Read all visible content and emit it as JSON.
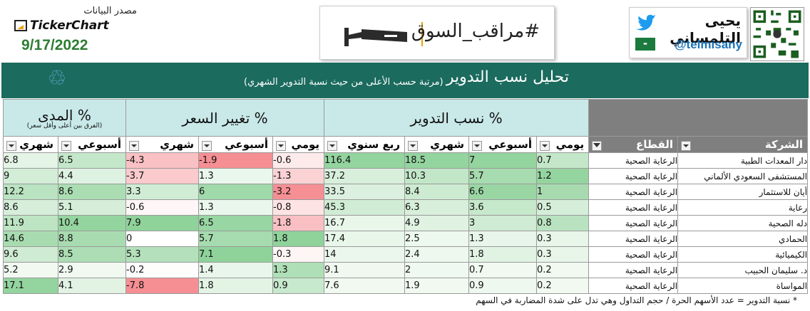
{
  "header": {
    "source_label": "مصدر البيانات",
    "source_name": "TickerChart",
    "date": "9/17/2022",
    "banner_tag": "#مراقب_السوق",
    "profile_name": "يحيى التلمساني",
    "profile_handle": "@telmisany"
  },
  "title": {
    "main": "تحليل نسب التدوير",
    "sub": "(مرتبة حسب الأعلى من حيث نسبة التدوير الشهري)"
  },
  "groups": {
    "range": {
      "title": "المدى %",
      "sub": "(الفرق بين أعلى وأقل سعر)"
    },
    "price": {
      "title": "تغيير السعر %"
    },
    "turnover": {
      "title": "نسب التدوير %"
    }
  },
  "columns": {
    "range_monthly": "شهري",
    "range_weekly": "أسبوعي",
    "price_monthly": "شهري",
    "price_weekly": "أسبوعي",
    "price_daily": "يومي",
    "turn_quarter": "ربع سنوي",
    "turn_monthly": "شهري",
    "turn_weekly": "أسبوعي",
    "turn_daily": "يومي",
    "sector": "القطاع",
    "company": "الشركة"
  },
  "rows": [
    {
      "range_m": "6.8",
      "range_w": "6.5",
      "price_m": "-4.3",
      "price_w": "-1.9",
      "price_d": "-0.6",
      "turn_q": "116.4",
      "turn_m": "18.5",
      "turn_w": "7",
      "turn_d": "0.7",
      "sector": "الرعاية الصحية",
      "company": "دار المعدات الطبية"
    },
    {
      "range_m": "9",
      "range_w": "4.4",
      "price_m": "-3.7",
      "price_w": "1.3",
      "price_d": "-1.3",
      "turn_q": "37.2",
      "turn_m": "10.3",
      "turn_w": "5.7",
      "turn_d": "1.2",
      "sector": "الرعاية الصحية",
      "company": "المستشفى السعودي الألماني"
    },
    {
      "range_m": "12.2",
      "range_w": "8.6",
      "price_m": "3.3",
      "price_w": "6",
      "price_d": "-3.2",
      "turn_q": "33.5",
      "turn_m": "8.4",
      "turn_w": "6.6",
      "turn_d": "1",
      "sector": "الرعاية الصحية",
      "company": "أيان للاستثمار"
    },
    {
      "range_m": "8.6",
      "range_w": "5.1",
      "price_m": "-0.6",
      "price_w": "1.3",
      "price_d": "-0.8",
      "turn_q": "45.3",
      "turn_m": "6.3",
      "turn_w": "3.6",
      "turn_d": "0.5",
      "sector": "الرعاية الصحية",
      "company": "رعاية"
    },
    {
      "range_m": "11.9",
      "range_w": "10.4",
      "price_m": "7.9",
      "price_w": "6.5",
      "price_d": "-1.8",
      "turn_q": "16.7",
      "turn_m": "4.9",
      "turn_w": "3",
      "turn_d": "0.8",
      "sector": "الرعاية الصحية",
      "company": "دله الصحية"
    },
    {
      "range_m": "14.6",
      "range_w": "8.8",
      "price_m": "0",
      "price_w": "5.7",
      "price_d": "1.8",
      "turn_q": "17.4",
      "turn_m": "2.5",
      "turn_w": "1.3",
      "turn_d": "0.3",
      "sector": "الرعاية الصحية",
      "company": "الحمادي"
    },
    {
      "range_m": "9.6",
      "range_w": "8.5",
      "price_m": "5.3",
      "price_w": "7.1",
      "price_d": "-0.3",
      "turn_q": "14",
      "turn_m": "2.4",
      "turn_w": "1.8",
      "turn_d": "0.3",
      "sector": "الرعاية الصحية",
      "company": "الكيميائية"
    },
    {
      "range_m": "5.2",
      "range_w": "2.9",
      "price_m": "-0.2",
      "price_w": "1.4",
      "price_d": "1.3",
      "turn_q": "9.1",
      "turn_m": "2",
      "turn_w": "0.7",
      "turn_d": "0.2",
      "sector": "الرعاية الصحية",
      "company": "د. سليمان الحبيب"
    },
    {
      "range_m": "17.1",
      "range_w": "4.1",
      "price_m": "-7.8",
      "price_w": "1.8",
      "price_d": "0.9",
      "turn_q": "7.6",
      "turn_m": "1.9",
      "turn_w": "0.9",
      "turn_d": "0.2",
      "sector": "الرعاية الصحية",
      "company": "المواساة"
    }
  ],
  "footnote": "* نسبة التدوير = عدد الأسهم الحرة / حجم التداول وهي تدل على شدة المضاربة في السهم",
  "colors": {
    "title_bar": "#1b6b5e",
    "group_header": "#c9e9e9",
    "green_strong": "#8fd29a",
    "red_strong": "#f58f94",
    "date_green": "#2e7d32"
  }
}
